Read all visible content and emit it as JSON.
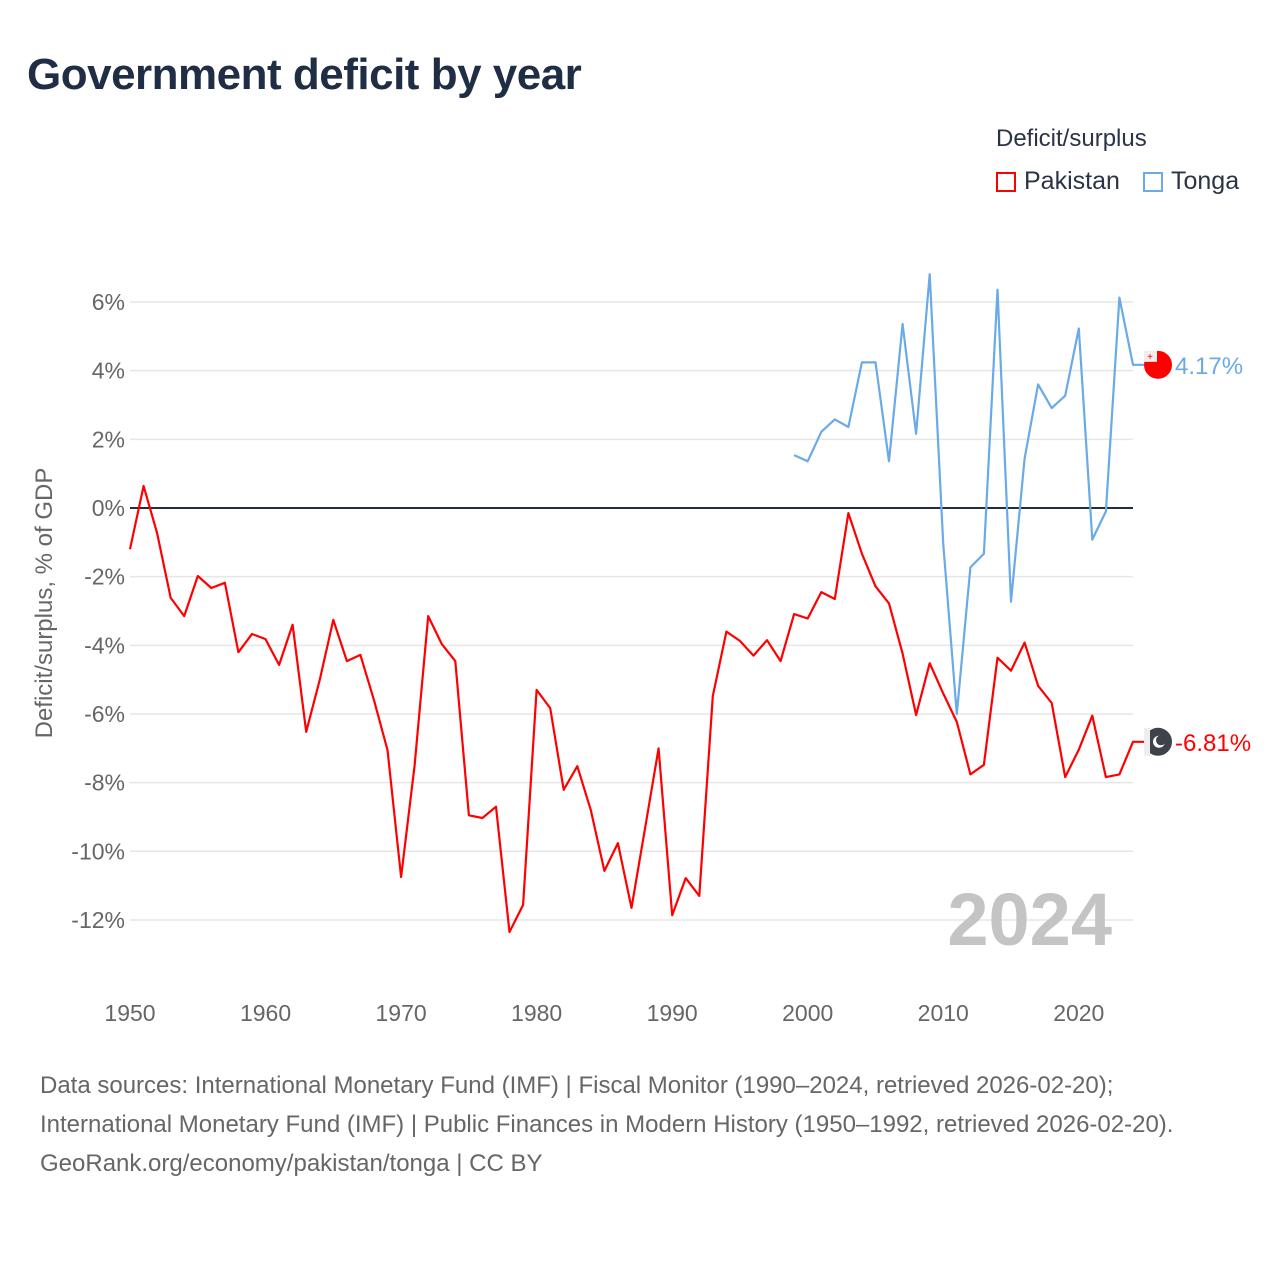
{
  "title": "Government deficit by year",
  "legend": {
    "title": "Deficit/surplus",
    "items": [
      {
        "label": "Pakistan",
        "color": "#ff0000"
      },
      {
        "label": "Tonga",
        "color": "#6aaae8"
      }
    ]
  },
  "footer": {
    "sources": "Data sources: International Monetary Fund (IMF) | Fiscal Monitor (1990–2024, retrieved 2026-02-20); International Monetary Fund (IMF) | Public Finances in Modern History (1950–1992, retrieved 2026-02-20).",
    "credit": "GeoRank.org/economy/pakistan/tonga | CC BY"
  },
  "chart_data": {
    "type": "line",
    "title": "Government deficit by year",
    "ylabel": "Deficit/surplus, % of GDP",
    "xlabel": "",
    "xlim": [
      1950,
      2024
    ],
    "ylim": [
      -13.5,
      7
    ],
    "yticks": [
      6,
      4,
      2,
      0,
      -2,
      -4,
      -6,
      -8,
      -10,
      -12
    ],
    "ytick_labels": [
      "6%",
      "4%",
      "2%",
      "0%",
      "-2%",
      "-4%",
      "-6%",
      "-8%",
      "-10%",
      "-12%"
    ],
    "xticks": [
      1950,
      1960,
      1970,
      1980,
      1990,
      2000,
      2010,
      2020
    ],
    "xtick_labels": [
      "1950",
      "1960",
      "1970",
      "1980",
      "1990",
      "2000",
      "2010",
      "2020"
    ],
    "year_watermark": "2024",
    "grid": true,
    "legend_position": "top-right",
    "series": [
      {
        "name": "Pakistan",
        "color": "#ff0000",
        "start_year": 1950,
        "end_label": "-6.81%",
        "values": [
          -1.2,
          0.64,
          -0.73,
          -2.62,
          -3.15,
          -1.98,
          -2.33,
          -2.18,
          -4.2,
          -3.67,
          -3.82,
          -4.57,
          -3.4,
          -6.52,
          -5.0,
          -3.26,
          -4.46,
          -4.28,
          -5.6,
          -7.05,
          -10.75,
          -7.5,
          -3.15,
          -3.96,
          -4.46,
          -8.95,
          -9.03,
          -8.7,
          -12.35,
          -11.56,
          -5.3,
          -5.83,
          -8.21,
          -7.52,
          -8.8,
          -10.57,
          -9.76,
          -11.65,
          -9.32,
          -7.0,
          -11.86,
          -10.78,
          -11.3,
          -5.48,
          -3.6,
          -3.87,
          -4.3,
          -3.85,
          -4.46,
          -3.09,
          -3.22,
          -2.45,
          -2.65,
          -0.15,
          -1.33,
          -2.28,
          -2.78,
          -4.24,
          -6.03,
          -4.52,
          -5.4,
          -6.23,
          -7.76,
          -7.48,
          -4.36,
          -4.74,
          -3.92,
          -5.18,
          -5.68,
          -7.84,
          -7.04,
          -6.05,
          -7.84,
          -7.76,
          -6.81
        ]
      },
      {
        "name": "Tonga",
        "color": "#6aaae8",
        "start_year": 1999,
        "end_label": "4.17%",
        "values": [
          1.54,
          1.36,
          2.22,
          2.58,
          2.36,
          4.24,
          4.24,
          1.36,
          5.36,
          2.16,
          6.81,
          -1.03,
          -6.0,
          -1.73,
          -1.33,
          6.36,
          -2.73,
          1.44,
          3.6,
          2.91,
          3.27,
          5.23,
          -0.92,
          -0.1,
          6.13,
          4.17
        ]
      }
    ]
  }
}
